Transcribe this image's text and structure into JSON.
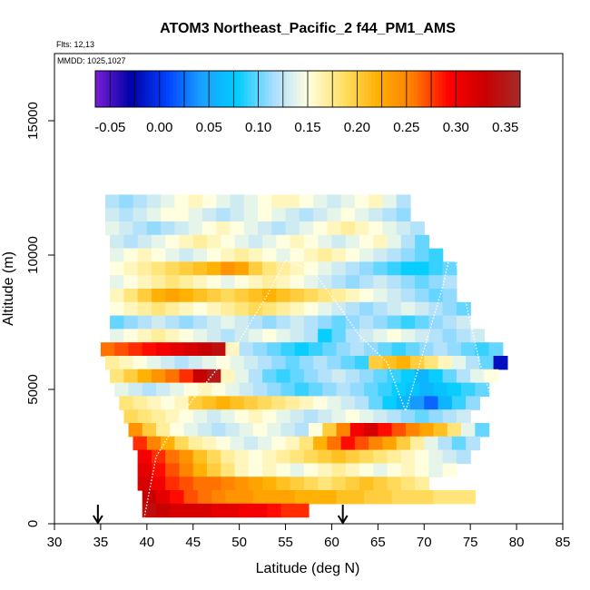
{
  "chart_data": {
    "type": "heatmap",
    "title": "ATOM3 Northeast_Pacific_2 f44_PM1_AMS",
    "flights_label": "Flts: 12,13",
    "dates_label": "MMDD: 1025,1027",
    "xlabel": "Latitude (deg N)",
    "ylabel": "Altitude (m)",
    "xlim": [
      30,
      85
    ],
    "ylim": [
      0,
      17500
    ],
    "x_ticks": [
      "30",
      "35",
      "40",
      "45",
      "50",
      "55",
      "60",
      "65",
      "70",
      "75",
      "80",
      "85"
    ],
    "y_ticks": [
      "0",
      "5000",
      "10000",
      "15000"
    ],
    "colorbar": {
      "range": [
        -0.065,
        0.365
      ],
      "tick_labels": [
        "-0.05",
        "0.00",
        "0.05",
        "0.10",
        "0.15",
        "0.20",
        "0.25",
        "0.30",
        "0.35"
      ],
      "colors": [
        "#7a1fd6",
        "#0000a8",
        "#0040ff",
        "#1aa0ff",
        "#00ccff",
        "#a6dcff",
        "#ffffe0",
        "#ffe066",
        "#ffb000",
        "#ff7a00",
        "#ff0000",
        "#c80000",
        "#a52a2a"
      ]
    },
    "flight_markers_lat": [
      34.7,
      61.2
    ],
    "bands": [
      {
        "alt": 12000,
        "lat_start": 35.5,
        "values": [
          0.12,
          0.11,
          0.12,
          0.13,
          0.14,
          0.15,
          0.16,
          0.15,
          0.14,
          0.13,
          0.14,
          0.15,
          0.16,
          0.16,
          0.15,
          0.14,
          0.13,
          0.14,
          0.15,
          0.16,
          0.14,
          0.12
        ]
      },
      {
        "alt": 11500,
        "lat_start": 35.5,
        "values": [
          0.13,
          0.12,
          0.13,
          0.14,
          0.15,
          0.15,
          0.14,
          0.13,
          0.12,
          0.13,
          0.14,
          0.15,
          0.14,
          0.13,
          0.12,
          0.13,
          0.14,
          0.15,
          0.14,
          0.13,
          0.12,
          0.11
        ]
      },
      {
        "alt": 11000,
        "lat_start": 35.5,
        "values": [
          0.14,
          0.13,
          0.12,
          0.11,
          0.12,
          0.13,
          0.14,
          0.15,
          0.16,
          0.15,
          0.14,
          0.13,
          0.12,
          0.13,
          0.14,
          0.15,
          0.16,
          0.17,
          0.16,
          0.15,
          0.14,
          0.13,
          0.12
        ]
      },
      {
        "alt": 10500,
        "lat_start": 36.0,
        "values": [
          0.13,
          0.12,
          0.13,
          0.14,
          0.15,
          0.16,
          0.17,
          0.16,
          0.15,
          0.14,
          0.13,
          0.14,
          0.15,
          0.16,
          0.15,
          0.14,
          0.13,
          0.14,
          0.15,
          0.16,
          0.14,
          0.12,
          0.1
        ]
      },
      {
        "alt": 10000,
        "lat_start": 36.0,
        "values": [
          0.14,
          0.15,
          0.16,
          0.15,
          0.14,
          0.13,
          0.14,
          0.15,
          0.16,
          0.17,
          0.16,
          0.15,
          0.14,
          0.15,
          0.16,
          0.17,
          0.16,
          0.15,
          0.14,
          0.13,
          0.12,
          0.11,
          0.1,
          0.09
        ]
      },
      {
        "alt": 9500,
        "lat_start": 36.0,
        "values": [
          0.15,
          0.16,
          0.17,
          0.18,
          0.19,
          0.2,
          0.21,
          0.22,
          0.24,
          0.23,
          0.2,
          0.18,
          0.17,
          0.16,
          0.15,
          0.14,
          0.13,
          0.12,
          0.11,
          0.1,
          0.09,
          0.08,
          0.08,
          0.09,
          0.1
        ]
      },
      {
        "alt": 9000,
        "lat_start": 36.0,
        "values": [
          0.14,
          0.15,
          0.16,
          0.17,
          0.18,
          0.17,
          0.16,
          0.15,
          0.14,
          0.15,
          0.16,
          0.17,
          0.16,
          0.15,
          0.14,
          0.13,
          0.12,
          0.11,
          0.12,
          0.13,
          0.12,
          0.11,
          0.1,
          0.11,
          0.12
        ]
      },
      {
        "alt": 8500,
        "lat_start": 36.0,
        "values": [
          0.16,
          0.18,
          0.2,
          0.22,
          0.23,
          0.22,
          0.21,
          0.2,
          0.19,
          0.2,
          0.21,
          0.22,
          0.21,
          0.2,
          0.19,
          0.18,
          0.17,
          0.16,
          0.15,
          0.14,
          0.13,
          0.12,
          0.11,
          0.1,
          0.11
        ]
      },
      {
        "alt": 8000,
        "lat_start": 36.0,
        "values": [
          0.15,
          0.16,
          0.17,
          0.18,
          0.17,
          0.16,
          0.15,
          0.16,
          0.17,
          0.18,
          0.19,
          0.18,
          0.17,
          0.16,
          0.15,
          0.14,
          0.13,
          0.12,
          0.11,
          0.12,
          0.13,
          0.14,
          0.13,
          0.12,
          0.11,
          0.1
        ]
      },
      {
        "alt": 7500,
        "lat_start": 36.0,
        "values": [
          0.1,
          0.11,
          0.12,
          0.13,
          0.12,
          0.11,
          0.12,
          0.13,
          0.14,
          0.13,
          0.12,
          0.11,
          0.12,
          0.13,
          0.12,
          0.11,
          0.1,
          0.11,
          0.12,
          0.11,
          0.1,
          0.09,
          0.1,
          0.11,
          0.12,
          0.13
        ]
      },
      {
        "alt": 7000,
        "lat_start": 36.0,
        "values": [
          0.14,
          0.15,
          0.16,
          0.17,
          0.16,
          0.15,
          0.14,
          0.13,
          0.12,
          0.13,
          0.14,
          0.15,
          0.14,
          0.13,
          0.12,
          0.08,
          0.1,
          0.12,
          0.13,
          0.14,
          0.15,
          0.14,
          0.13,
          0.12,
          0.11,
          0.12,
          0.13
        ]
      },
      {
        "alt": 6500,
        "lat_start": 35.0,
        "values": [
          0.26,
          0.27,
          0.28,
          0.29,
          0.3,
          0.31,
          0.32,
          0.33,
          0.34,
          0.16,
          0.12,
          0.11,
          0.1,
          0.09,
          0.08,
          0.09,
          0.1,
          0.11,
          0.12,
          0.11,
          0.1,
          0.09,
          0.1,
          0.11,
          0.12,
          0.11,
          0.1,
          0.09,
          0.1
        ]
      },
      {
        "alt": 6000,
        "lat_start": 35.5,
        "values": [
          0.17,
          0.16,
          0.15,
          0.14,
          0.13,
          0.12,
          0.13,
          0.14,
          0.15,
          0.14,
          0.13,
          0.12,
          0.11,
          0.1,
          0.11,
          0.12,
          0.11,
          0.1,
          0.09,
          0.2,
          0.21,
          0.22,
          0.2,
          0.18,
          0.16,
          0.14,
          0.12,
          0.1,
          -0.02
        ]
      },
      {
        "alt": 5500,
        "lat_start": 36.0,
        "values": [
          0.18,
          0.2,
          0.22,
          0.24,
          0.26,
          0.28,
          0.33,
          0.35,
          0.16,
          0.14,
          0.12,
          0.1,
          0.09,
          0.1,
          0.11,
          0.12,
          0.13,
          0.12,
          0.11,
          0.1,
          0.09,
          0.08,
          0.06,
          0.08,
          0.1,
          0.12,
          0.14,
          0.15
        ]
      },
      {
        "alt": 5000,
        "lat_start": 36.5,
        "values": [
          0.14,
          0.13,
          0.12,
          0.13,
          0.14,
          0.15,
          0.16,
          0.15,
          0.14,
          0.13,
          0.12,
          0.11,
          0.1,
          0.09,
          0.1,
          0.11,
          0.12,
          0.11,
          0.1,
          0.09,
          0.08,
          0.07,
          0.06,
          0.07,
          0.08,
          0.09,
          0.1
        ]
      },
      {
        "alt": 4500,
        "lat_start": 37.0,
        "values": [
          0.18,
          0.17,
          0.16,
          0.15,
          0.16,
          0.2,
          0.21,
          0.22,
          0.21,
          0.2,
          0.19,
          0.18,
          0.17,
          0.16,
          0.15,
          0.14,
          0.13,
          0.12,
          0.1,
          0.08,
          0.06,
          0.04,
          0.02,
          0.06,
          0.09,
          0.11
        ]
      },
      {
        "alt": 4000,
        "lat_start": 37.5,
        "values": [
          0.19,
          0.18,
          0.17,
          0.16,
          0.15,
          0.14,
          0.13,
          0.14,
          0.15,
          0.16,
          0.15,
          0.14,
          0.13,
          0.12,
          0.13,
          0.14,
          0.15,
          0.14,
          0.13,
          0.12,
          0.11,
          0.1,
          0.11,
          0.12,
          0.13
        ]
      },
      {
        "alt": 3500,
        "lat_start": 38.0,
        "values": [
          0.24,
          0.2,
          0.17,
          0.15,
          0.14,
          0.13,
          0.12,
          0.13,
          0.14,
          0.15,
          0.14,
          0.13,
          0.12,
          0.15,
          0.2,
          0.25,
          0.3,
          0.32,
          0.29,
          0.27,
          0.25,
          0.23,
          0.21,
          0.18,
          0.14,
          0.1
        ]
      },
      {
        "alt": 3000,
        "lat_start": 38.5,
        "values": [
          0.28,
          0.25,
          0.22,
          0.19,
          0.17,
          0.16,
          0.15,
          0.14,
          0.13,
          0.14,
          0.15,
          0.16,
          0.18,
          0.22,
          0.26,
          0.29,
          0.27,
          0.25,
          0.23,
          0.2,
          0.17,
          0.14,
          0.12,
          0.1,
          0.12
        ]
      },
      {
        "alt": 2500,
        "lat_start": 39.0,
        "values": [
          0.3,
          0.28,
          0.26,
          0.24,
          0.21,
          0.19,
          0.17,
          0.16,
          0.15,
          0.16,
          0.17,
          0.18,
          0.19,
          0.2,
          0.21,
          0.2,
          0.19,
          0.18,
          0.17,
          0.16,
          0.15,
          0.14,
          0.13,
          0.12
        ]
      },
      {
        "alt": 2000,
        "lat_start": 39.0,
        "values": [
          0.31,
          0.29,
          0.27,
          0.25,
          0.22,
          0.2,
          0.18,
          0.16,
          0.15,
          0.16,
          0.15,
          0.14,
          0.15,
          0.16,
          0.17,
          0.16,
          0.15,
          0.14,
          0.15,
          0.16,
          0.15,
          0.14,
          0.15
        ]
      },
      {
        "alt": 1500,
        "lat_start": 39.0,
        "values": [
          0.32,
          0.3,
          0.28,
          0.27,
          0.26,
          0.26,
          0.25,
          0.24,
          0.23,
          0.22,
          0.21,
          0.2,
          0.19,
          0.18,
          0.19,
          0.2,
          0.21,
          0.2,
          0.19,
          0.18,
          0.17
        ]
      },
      {
        "alt": 1000,
        "lat_start": 39.5,
        "values": [
          0.33,
          0.31,
          0.29,
          0.27,
          0.26,
          0.25,
          0.24,
          0.24,
          0.23,
          0.23,
          0.23,
          0.22,
          0.22,
          0.22,
          0.21,
          0.21,
          0.2,
          0.2,
          0.19,
          0.19,
          0.19,
          0.18,
          0.18,
          0.18
        ]
      },
      {
        "alt": 500,
        "lat_start": 39.5,
        "values": [
          0.34,
          0.33,
          0.32,
          0.32,
          0.32,
          0.31,
          0.31,
          0.3,
          0.3,
          0.29,
          0.28,
          0.28
        ]
      }
    ]
  }
}
